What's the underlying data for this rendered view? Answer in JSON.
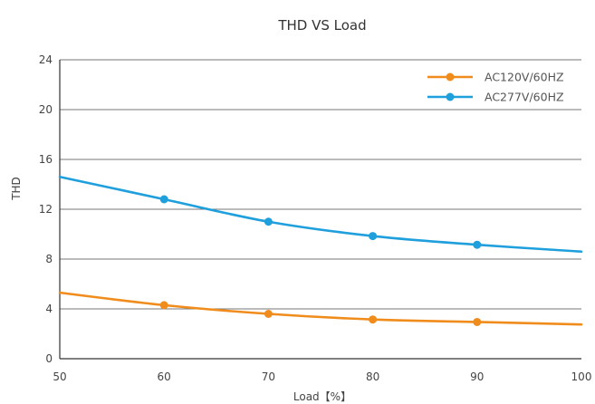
{
  "chart_data": {
    "type": "line",
    "title": "THD VS Load",
    "xlabel": "Load【%】",
    "ylabel": "THD",
    "xlim": [
      50,
      100
    ],
    "ylim": [
      0,
      24
    ],
    "x_ticks": [
      "50",
      "60",
      "70",
      "80",
      "90",
      "100"
    ],
    "y_ticks": [
      "0",
      "4",
      "8",
      "12",
      "16",
      "20",
      "24"
    ],
    "grid": "horizontal",
    "legend_position": "top-right",
    "series": [
      {
        "name": "AC120V/60HZ",
        "color": "#f08c1c",
        "x": [
          50,
          60,
          70,
          80,
          90,
          100
        ],
        "y": [
          5.3,
          4.3,
          3.6,
          3.15,
          2.95,
          2.75
        ],
        "markers_at": [
          60,
          70,
          80,
          90
        ]
      },
      {
        "name": "AC277V/60HZ",
        "color": "#1f9fdc",
        "x": [
          50,
          60,
          70,
          80,
          90,
          100
        ],
        "y": [
          14.6,
          12.8,
          11.0,
          9.85,
          9.15,
          8.6
        ],
        "markers_at": [
          60,
          70,
          80,
          90
        ]
      }
    ]
  }
}
